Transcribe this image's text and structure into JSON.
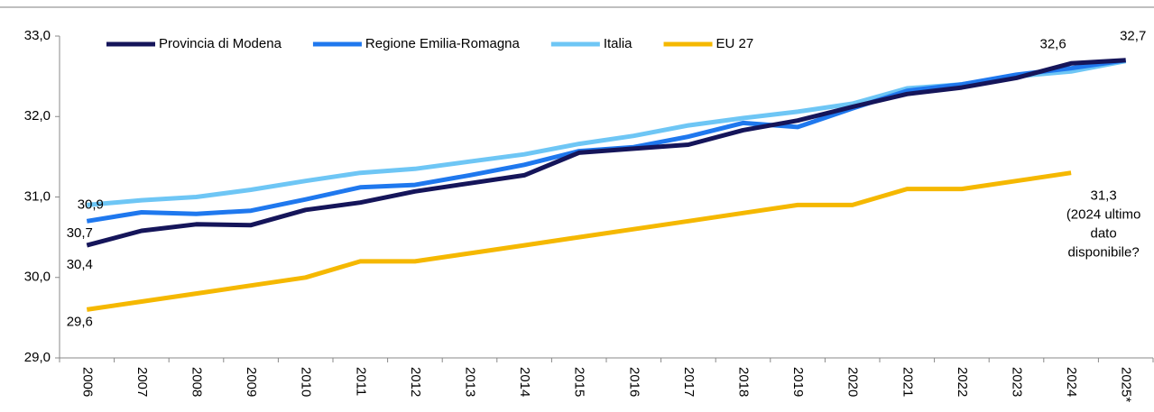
{
  "chart_data": {
    "type": "line",
    "categories": [
      "2006",
      "2007",
      "2008",
      "2009",
      "2010",
      "2011",
      "2012",
      "2013",
      "2014",
      "2015",
      "2016",
      "2017",
      "2018",
      "2019",
      "2020",
      "2021",
      "2022",
      "2023",
      "2024",
      "2025*"
    ],
    "ylim": [
      29,
      33
    ],
    "yticks": [
      {
        "value": 29,
        "label": "29,0"
      },
      {
        "value": 30,
        "label": "30,0"
      },
      {
        "value": 31,
        "label": "31,0"
      },
      {
        "value": 32,
        "label": "32,0"
      },
      {
        "value": 33,
        "label": "33,0"
      }
    ],
    "legend": "top-left",
    "series": [
      {
        "name": "Provincia di Modena",
        "color": "#15155a",
        "values": [
          30.4,
          30.58,
          30.66,
          30.65,
          30.84,
          30.93,
          31.07,
          31.17,
          31.27,
          31.55,
          31.6,
          31.65,
          31.83,
          31.95,
          32.12,
          32.28,
          32.36,
          32.48,
          32.66,
          32.7
        ],
        "value_labels": [
          "30,4",
          null,
          null,
          null,
          null,
          null,
          null,
          null,
          null,
          null,
          null,
          null,
          null,
          null,
          null,
          null,
          null,
          null,
          null,
          "32,7"
        ]
      },
      {
        "name": "Regione Emilia-Romagna",
        "color": "#1f78ee",
        "values": [
          30.7,
          30.81,
          30.79,
          30.83,
          30.97,
          31.12,
          31.15,
          31.27,
          31.4,
          31.57,
          31.62,
          31.75,
          31.92,
          31.87,
          32.1,
          32.32,
          32.4,
          32.52,
          32.6,
          32.7
        ],
        "value_labels": [
          "30,7",
          null,
          null,
          null,
          null,
          null,
          null,
          null,
          null,
          null,
          null,
          null,
          null,
          null,
          null,
          null,
          null,
          null,
          "32,6",
          null
        ]
      },
      {
        "name": "Italia",
        "color": "#6ec6f5",
        "values": [
          30.9,
          30.96,
          31.0,
          31.09,
          31.2,
          31.3,
          31.35,
          31.44,
          31.53,
          31.66,
          31.76,
          31.89,
          31.98,
          32.06,
          32.16,
          32.35,
          32.4,
          32.5,
          32.56,
          32.69
        ],
        "value_labels": [
          "30,9",
          null,
          null,
          null,
          null,
          null,
          null,
          null,
          null,
          null,
          null,
          null,
          null,
          null,
          null,
          null,
          null,
          null,
          null,
          null
        ]
      },
      {
        "name": "EU 27",
        "color": "#f5b800",
        "values": [
          29.6,
          29.7,
          29.8,
          29.9,
          30.0,
          30.2,
          30.2,
          30.3,
          30.4,
          30.5,
          30.6,
          30.7,
          30.8,
          30.9,
          30.9,
          31.1,
          31.1,
          31.2,
          31.3,
          null
        ],
        "value_labels": [
          "29,6",
          null,
          null,
          null,
          null,
          null,
          null,
          null,
          null,
          null,
          null,
          null,
          null,
          null,
          null,
          null,
          null,
          null,
          "31,3",
          null
        ]
      }
    ],
    "annotation": [
      "(2024 ultimo",
      "dato",
      "disponibile?"
    ]
  }
}
